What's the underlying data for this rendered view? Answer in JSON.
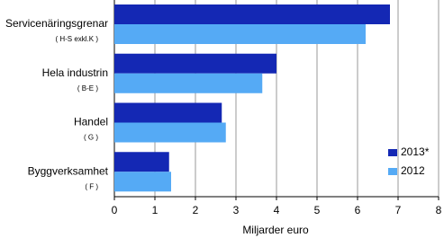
{
  "chart_data": {
    "type": "bar",
    "orientation": "horizontal",
    "categories": [
      "Servicenäringsgrenar",
      "Hela industrin",
      "Handel",
      "Byggverksamhet"
    ],
    "category_codes": [
      "( H-S exkl.K )",
      "( B-E )",
      "( G )",
      "( F )"
    ],
    "series": [
      {
        "name": "2013*",
        "color": "#1428b4",
        "values": [
          6.8,
          4.0,
          2.65,
          1.35
        ]
      },
      {
        "name": "2012",
        "color": "#55aaf5",
        "values": [
          6.2,
          3.65,
          2.75,
          1.4
        ]
      }
    ],
    "xlabel": "Miljarder euro",
    "xlim": [
      0,
      8
    ],
    "xticks": [
      0,
      1,
      2,
      3,
      4,
      5,
      6,
      7,
      8
    ],
    "grid": true,
    "legend": "lower right"
  }
}
